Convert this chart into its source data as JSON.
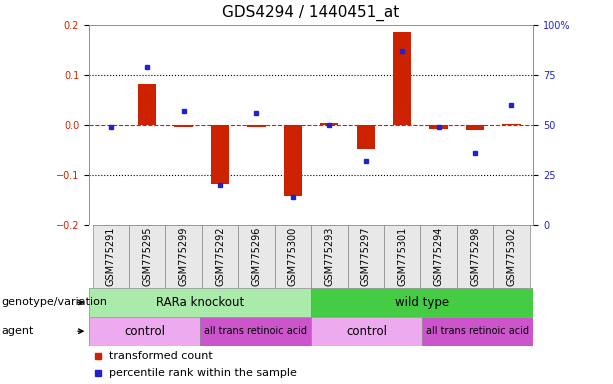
{
  "title": "GDS4294 / 1440451_at",
  "samples": [
    "GSM775291",
    "GSM775295",
    "GSM775299",
    "GSM775292",
    "GSM775296",
    "GSM775300",
    "GSM775293",
    "GSM775297",
    "GSM775301",
    "GSM775294",
    "GSM775298",
    "GSM775302"
  ],
  "transformed_count": [
    0.0,
    0.082,
    -0.005,
    -0.118,
    -0.005,
    -0.143,
    0.003,
    -0.048,
    0.185,
    -0.008,
    -0.01,
    0.002
  ],
  "percentile_rank": [
    49,
    79,
    57,
    20,
    56,
    14,
    50,
    32,
    87,
    49,
    36,
    60
  ],
  "left_ylim": [
    -0.2,
    0.2
  ],
  "left_yticks": [
    -0.2,
    -0.1,
    0.0,
    0.1,
    0.2
  ],
  "right_ylim": [
    0,
    100
  ],
  "right_yticks": [
    0,
    25,
    50,
    75,
    100
  ],
  "right_yticklabels": [
    "0",
    "25",
    "50",
    "75",
    "100%"
  ],
  "bar_color": "#cc2200",
  "dot_color": "#2222cc",
  "hline_color": "#cc2200",
  "dotline_color": "black",
  "genotype_labels": [
    {
      "label": "RARa knockout",
      "start": 0,
      "end": 6,
      "color": "#aaeaaa"
    },
    {
      "label": "wild type",
      "start": 6,
      "end": 12,
      "color": "#44cc44"
    }
  ],
  "agent_labels": [
    {
      "label": "control",
      "start": 0,
      "end": 3,
      "color": "#eeaaee"
    },
    {
      "label": "all trans retinoic acid",
      "start": 3,
      "end": 6,
      "color": "#cc55cc"
    },
    {
      "label": "control",
      "start": 6,
      "end": 9,
      "color": "#eeaaee"
    },
    {
      "label": "all trans retinoic acid",
      "start": 9,
      "end": 12,
      "color": "#cc55cc"
    }
  ],
  "legend_items": [
    {
      "label": "transformed count",
      "color": "#cc2200"
    },
    {
      "label": "percentile rank within the sample",
      "color": "#2222cc"
    }
  ],
  "row_labels": [
    "genotype/variation",
    "agent"
  ],
  "bar_width": 0.5,
  "tick_label_fontsize": 7,
  "title_fontsize": 11,
  "row_label_fontsize": 8,
  "legend_fontsize": 8,
  "sample_fontsize": 7
}
